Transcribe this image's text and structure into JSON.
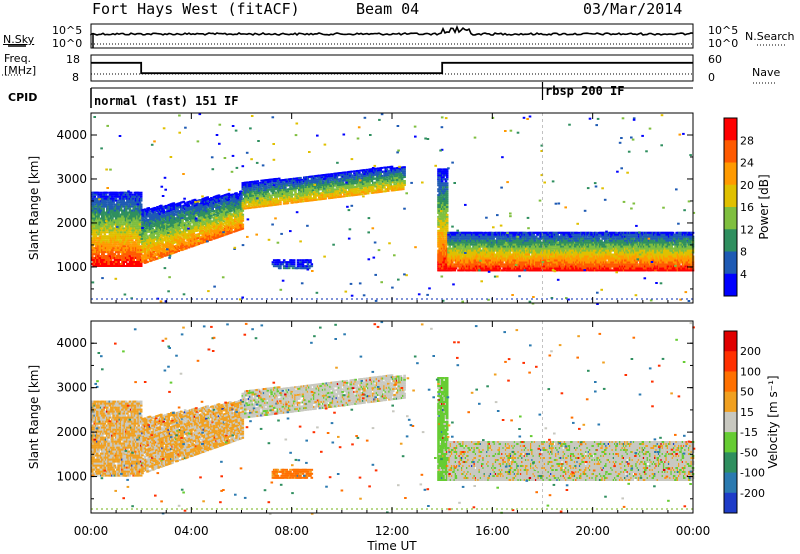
{
  "header": {
    "station": "Fort Hays West (fitACF)",
    "beam": "Beam 04",
    "date": "03/Mar/2014"
  },
  "top_panels": {
    "nsky_label": "N.Sky",
    "nsearch_label": "N.Search",
    "noise_ticks_left": [
      "10^5",
      "10^0"
    ],
    "noise_ticks_right": [
      "10^5",
      "10^0"
    ],
    "freq_label": "Freq.",
    "freq_unit": "[MHz]",
    "freq_ticks": [
      "18",
      "8"
    ],
    "nave_label": "Nave",
    "nave_ticks": [
      "60",
      "0"
    ],
    "cpid_label": "CPID",
    "cpid_modes": [
      {
        "name": "normal (fast) 151 IF",
        "start_hour": 0
      },
      {
        "name": "rbsp 200 IF",
        "start_hour": 18
      }
    ],
    "freq_steps": [
      {
        "from": 0,
        "to": 2,
        "mhz": 15
      },
      {
        "from": 2,
        "to": 14,
        "mhz": 11
      },
      {
        "from": 14,
        "to": 24,
        "mhz": 15
      }
    ]
  },
  "power_panel": {
    "ylabel": "Slant Range [km]",
    "yticks": [
      "1000",
      "2000",
      "3000",
      "4000"
    ],
    "colorbar_label": "Power [dB]",
    "colorbar_ticks": [
      "4",
      "8",
      "12",
      "16",
      "20",
      "24",
      "28"
    ],
    "colorbar_colors": [
      "#0000ff",
      "#1e5ab4",
      "#2f8f5f",
      "#7fbf3f",
      "#e0c000",
      "#ff9a00",
      "#ff5a00",
      "#ff0000"
    ]
  },
  "velocity_panel": {
    "ylabel": "Slant Range [km]",
    "yticks": [
      "1000",
      "2000",
      "3000",
      "4000"
    ],
    "colorbar_label": "Velocity [m s⁻¹]",
    "colorbar_ticks": [
      "200",
      "100",
      "50",
      "15",
      "-15",
      "-50",
      "-100",
      "-200"
    ],
    "colorbar_colors": [
      "#1e3cc8",
      "#2b7ab0",
      "#2f8f5f",
      "#66cc33",
      "#c8c8c0",
      "#f0a020",
      "#ff7000",
      "#ff3000",
      "#e00000"
    ]
  },
  "xaxis": {
    "label": "Time UT",
    "ticks": [
      "00:00",
      "04:00",
      "08:00",
      "12:00",
      "16:00",
      "20:00",
      "00:00"
    ]
  },
  "chart_data": [
    {
      "type": "line",
      "title": "Fort Hays West (fitACF) Beam 04 03/Mar/2014",
      "xlabel": "Time UT",
      "ylabel": "Freq. [MHz]",
      "ylim": [
        8,
        18
      ],
      "series": [
        {
          "name": "Freq.",
          "x": [
            0,
            2,
            2,
            14,
            14,
            24
          ],
          "values": [
            15,
            15,
            11,
            11,
            15,
            15
          ]
        }
      ]
    },
    {
      "type": "heatmap",
      "title": "Power [dB]",
      "xlabel": "Time UT (hours)",
      "ylabel": "Slant Range [km]",
      "xlim": [
        0,
        24
      ],
      "ylim": [
        180,
        4500
      ],
      "value_range": [
        0,
        30
      ],
      "regions": [
        {
          "from_hour": 0.0,
          "to_hour": 2.0,
          "low_km": 1000,
          "high_km": 2700,
          "peak_db": 28
        },
        {
          "from_hour": 2.0,
          "to_hour": 6.0,
          "low_km": 1050,
          "high_km": 2300,
          "peak_db": 24
        },
        {
          "from_hour": 6.0,
          "to_hour": 10.0,
          "low_km": 2300,
          "high_km": 2900,
          "peak_db": 20
        },
        {
          "from_hour": 10.0,
          "to_hour": 12.5,
          "low_km": 2700,
          "high_km": 3200,
          "peak_db": 18
        },
        {
          "from_hour": 13.8,
          "to_hour": 14.2,
          "low_km": 900,
          "high_km": 3200,
          "peak_db": 28
        },
        {
          "from_hour": 14.2,
          "to_hour": 24.0,
          "low_km": 900,
          "high_km": 1800,
          "peak_db": 28
        }
      ]
    },
    {
      "type": "heatmap",
      "title": "Velocity [m s⁻¹]",
      "xlabel": "Time UT (hours)",
      "ylabel": "Slant Range [km]",
      "xlim": [
        0,
        24
      ],
      "ylim": [
        180,
        4500
      ],
      "value_range": [
        -200,
        200
      ],
      "regions": [
        {
          "from_hour": 0.0,
          "to_hour": 2.0,
          "low_km": 1000,
          "high_km": 2700,
          "velocity": -20
        },
        {
          "from_hour": 2.0,
          "to_hour": 6.0,
          "low_km": 1050,
          "high_km": 2300,
          "velocity": -20
        },
        {
          "from_hour": 6.0,
          "to_hour": 12.5,
          "low_km": 2300,
          "high_km": 3200,
          "velocity": 0
        },
        {
          "from_hour": 7.2,
          "to_hour": 8.8,
          "low_km": 950,
          "high_km": 1150,
          "velocity": -60
        },
        {
          "from_hour": 13.8,
          "to_hour": 14.2,
          "low_km": 900,
          "high_km": 3200,
          "velocity": 30
        },
        {
          "from_hour": 14.2,
          "to_hour": 24.0,
          "low_km": 900,
          "high_km": 1800,
          "velocity": 0
        }
      ]
    }
  ]
}
